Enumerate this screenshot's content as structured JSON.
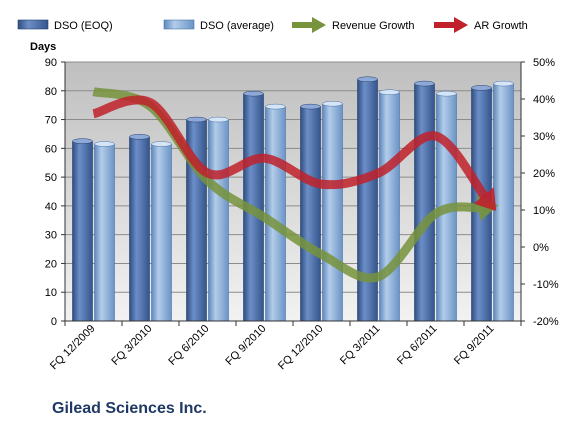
{
  "chart_data": {
    "type": "bar",
    "company": "Gilead Sciences Inc.",
    "ylabel": "Days",
    "categories": [
      "FQ 12/2009",
      "FQ 3/2010",
      "FQ 6/2010",
      "FQ 9/2010",
      "FQ 12/2010",
      "FQ 3/2011",
      "FQ 6/2011",
      "FQ 9/2011"
    ],
    "ylim": [
      0,
      90
    ],
    "yticks": [
      0,
      10,
      20,
      30,
      40,
      50,
      60,
      70,
      80,
      90
    ],
    "y2lim": [
      -20,
      50
    ],
    "y2ticks": [
      "-20%",
      "-10%",
      "0%",
      "10%",
      "20%",
      "30%",
      "40%",
      "50%"
    ],
    "series": [
      {
        "name": "DSO (EOQ)",
        "kind": "bar",
        "axis": "left",
        "color": "#4f6fa8",
        "values": [
          62.5,
          64,
          70,
          79,
          74.5,
          84,
          82.5,
          81
        ]
      },
      {
        "name": "DSO (average)",
        "kind": "bar",
        "axis": "left",
        "color": "#8db3e2",
        "values": [
          61.5,
          61.5,
          70,
          74.5,
          75.5,
          79.5,
          79,
          82.5
        ]
      },
      {
        "name": "Revenue Growth",
        "kind": "arrow",
        "axis": "right",
        "color": "#77933c",
        "values": [
          42,
          38,
          18,
          8,
          -2,
          -8,
          9,
          11
        ]
      },
      {
        "name": "AR Growth",
        "kind": "arrow",
        "axis": "right",
        "color": "#c0212a",
        "values": [
          36,
          39,
          20,
          24,
          17,
          20,
          30,
          11
        ]
      }
    ],
    "grid": true,
    "legend": "top"
  }
}
